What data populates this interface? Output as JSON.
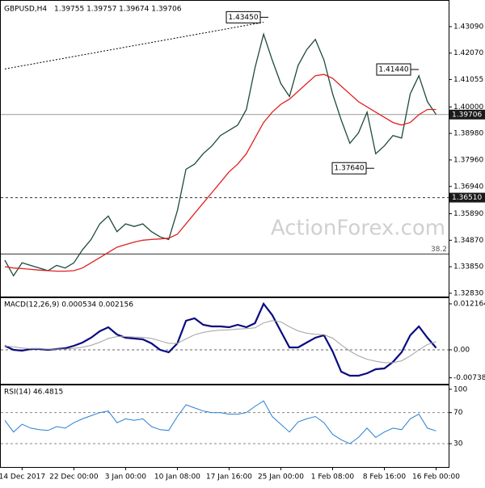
{
  "chart_data": [
    {
      "type": "line",
      "title": "GBPUSD,H4",
      "subtitle": "1.39755 1.39757 1.39674 1.39706",
      "watermark": "ActionForex.com",
      "categories": [
        null,
        null,
        "14 Dec 2017",
        null,
        null,
        null,
        null,
        null,
        "22 Dec 00:00",
        null,
        null,
        null,
        null,
        null,
        "3 Jan 00:00",
        null,
        null,
        null,
        null,
        null,
        "10 Jan 08:00",
        null,
        null,
        null,
        null,
        null,
        "17 Jan 16:00",
        null,
        null,
        null,
        null,
        null,
        "25 Jan 00:00",
        null,
        null,
        null,
        null,
        null,
        "1 Feb 08:00",
        null,
        null,
        null,
        null,
        null,
        "8 Feb 16:00",
        null,
        null,
        null,
        null,
        null,
        "16 Feb 00:00"
      ],
      "series": [
        {
          "color": "#1e4a3a",
          "style": "solid",
          "values": [
            1.341,
            1.335,
            1.34,
            1.339,
            1.338,
            1.337,
            1.339,
            1.338,
            1.34,
            1.345,
            1.349,
            1.355,
            1.358,
            1.352,
            1.355,
            1.354,
            1.355,
            1.352,
            1.35,
            1.349,
            1.36,
            1.376,
            1.378,
            1.382,
            1.385,
            1.389,
            1.391,
            1.393,
            1.399,
            1.415,
            1.428,
            1.418,
            1.409,
            1.404,
            1.416,
            1.422,
            1.426,
            1.418,
            1.405,
            1.395,
            1.386,
            1.39,
            1.398,
            1.382,
            1.385,
            1.389,
            1.388,
            1.405,
            1.412,
            1.402,
            1.39706
          ]
        },
        {
          "color": "#e02020",
          "style": "solid",
          "values": [
            1.3385,
            1.338,
            1.3378,
            1.3375,
            1.3372,
            1.337,
            1.3368,
            1.3368,
            1.337,
            1.338,
            1.34,
            1.342,
            1.344,
            1.346,
            1.347,
            1.348,
            1.3487,
            1.349,
            1.3492,
            1.3495,
            1.351,
            1.355,
            1.359,
            1.363,
            1.367,
            1.371,
            1.375,
            1.378,
            1.382,
            1.388,
            1.394,
            1.398,
            1.401,
            1.403,
            1.406,
            1.409,
            1.412,
            1.4125,
            1.411,
            1.408,
            1.405,
            1.402,
            1.4,
            1.398,
            1.396,
            1.394,
            1.393,
            1.394,
            1.397,
            1.399,
            1.399
          ]
        },
        {
          "color": "#000000",
          "style": "dotted",
          "values": [
            1.4146,
            1.4152,
            1.4158,
            1.4164,
            1.417,
            1.4176,
            1.4182,
            1.4188,
            1.4194,
            1.42,
            1.4206,
            1.4212,
            1.4218,
            1.4224,
            1.423,
            1.4236,
            1.4242,
            1.4248,
            1.4254,
            1.426,
            1.4266,
            1.4272,
            1.4278,
            1.4284,
            1.429,
            1.4296,
            1.4302,
            1.4308,
            1.4314,
            1.432,
            1.4326,
            null,
            null,
            null,
            null,
            null,
            null,
            null,
            null,
            null,
            null,
            null,
            null,
            null,
            null,
            null,
            null,
            null,
            null,
            null,
            null
          ]
        }
      ],
      "ylim": [
        1.32704,
        1.44083
      ],
      "yticks": [
        {
          "value": 1.4309,
          "label": "1.43090"
        },
        {
          "value": 1.4207,
          "label": "1.42070"
        },
        {
          "value": 1.41055,
          "label": "1.41055"
        },
        {
          "value": 1.4,
          "label": "1.40000"
        },
        {
          "value": 1.3898,
          "label": "1.38980"
        },
        {
          "value": 1.3796,
          "label": "1.37960"
        },
        {
          "value": 1.3694,
          "label": "1.36940"
        },
        {
          "value": 1.3589,
          "label": "1.35890"
        },
        {
          "value": 1.3487,
          "label": "1.34870"
        },
        {
          "value": 1.3385,
          "label": "1.33850"
        },
        {
          "value": 1.3283,
          "label": "1.32830"
        }
      ],
      "levels": [
        {
          "value": 1.39706,
          "label": "1.39706",
          "style": "solid"
        },
        {
          "value": 1.3651,
          "label": "1.36510",
          "style": "dashed"
        }
      ],
      "fib_level": {
        "ratio": 38.2,
        "price": 1.3434
      },
      "annotations": [
        {
          "value": 1.4345,
          "label": "1.43450"
        },
        {
          "value": 1.4144,
          "label": "1.41440"
        },
        {
          "value": 1.3764,
          "label": "1.37640"
        }
      ]
    },
    {
      "type": "line",
      "title": "MACD(12,26,9) 0.000534 0.002156",
      "series": [
        {
          "color": "#0a0a80",
          "width": 2.2,
          "values": [
            0.00107,
            0,
            -0.00021,
            0.00021,
            0.00021,
            0,
            0.00021,
            0.00043,
            0.00107,
            0.00192,
            0.0032,
            0.00491,
            0.00597,
            0.00405,
            0.0032,
            0.00299,
            0.00277,
            0.00171,
            0,
            -0.00064,
            0.00171,
            0.00768,
            0.00832,
            0.00661,
            0.00619,
            0.00619,
            0.00597,
            0.00661,
            0.00597,
            0.00704,
            0.01216,
            0.00918,
            0.00491,
            0.00064,
            0.00064,
            0.00192,
            0.0032,
            0.00384,
            -0.00043,
            -0.00576,
            -0.00683,
            -0.00683,
            -0.00619,
            -0.00512,
            -0.0049,
            -0.0032,
            -0.00064,
            0.00384,
            0.00619,
            0.0032,
            0.000534
          ]
        },
        {
          "color": "#a0a0a0",
          "width": 1,
          "values": [
            0.001,
            0.0008,
            0.0005,
            0.0003,
            0.0003,
            0.0002,
            0.0002,
            0.0002,
            0.0004,
            0.0007,
            0.0012,
            0.002,
            0.003,
            0.0035,
            0.0035,
            0.0034,
            0.0033,
            0.003,
            0.0024,
            0.0017,
            0.0017,
            0.0029,
            0.004,
            0.0046,
            0.005,
            0.0052,
            0.0053,
            0.0055,
            0.0056,
            0.0058,
            0.0071,
            0.0077,
            0.0074,
            0.0061,
            0.005,
            0.0044,
            0.0041,
            0.004,
            0.0031,
            0.0013,
            -0.0003,
            -0.0016,
            -0.0025,
            -0.003,
            -0.0034,
            -0.0034,
            -0.0029,
            -0.0016,
            0,
            0.0014,
            0.002156
          ]
        }
      ],
      "ylim": [
        -0.00896,
        0.013658
      ],
      "yticks": [
        0.012164,
        {
          "value": 0,
          "label": "0.00"
        },
        -0.007384
      ],
      "zero_line": 0
    },
    {
      "type": "line",
      "title": "RSI(14) 46.4815",
      "series": [
        {
          "color": "#2a7fd4",
          "width": 1,
          "values": [
            60,
            45,
            55,
            50,
            48,
            47,
            52,
            50,
            57,
            62,
            66,
            70,
            72,
            57,
            62,
            60,
            62,
            52,
            48,
            47,
            65,
            80,
            76,
            72,
            70,
            70,
            68,
            68,
            70,
            78,
            85,
            65,
            55,
            45,
            58,
            62,
            65,
            57,
            42,
            35,
            30,
            38,
            50,
            38,
            45,
            50,
            48,
            62,
            68,
            50,
            46.4815
          ]
        }
      ],
      "ylim": [
        0,
        105
      ],
      "yticks": [
        100,
        70,
        30
      ],
      "bands": [
        70,
        30
      ]
    }
  ]
}
